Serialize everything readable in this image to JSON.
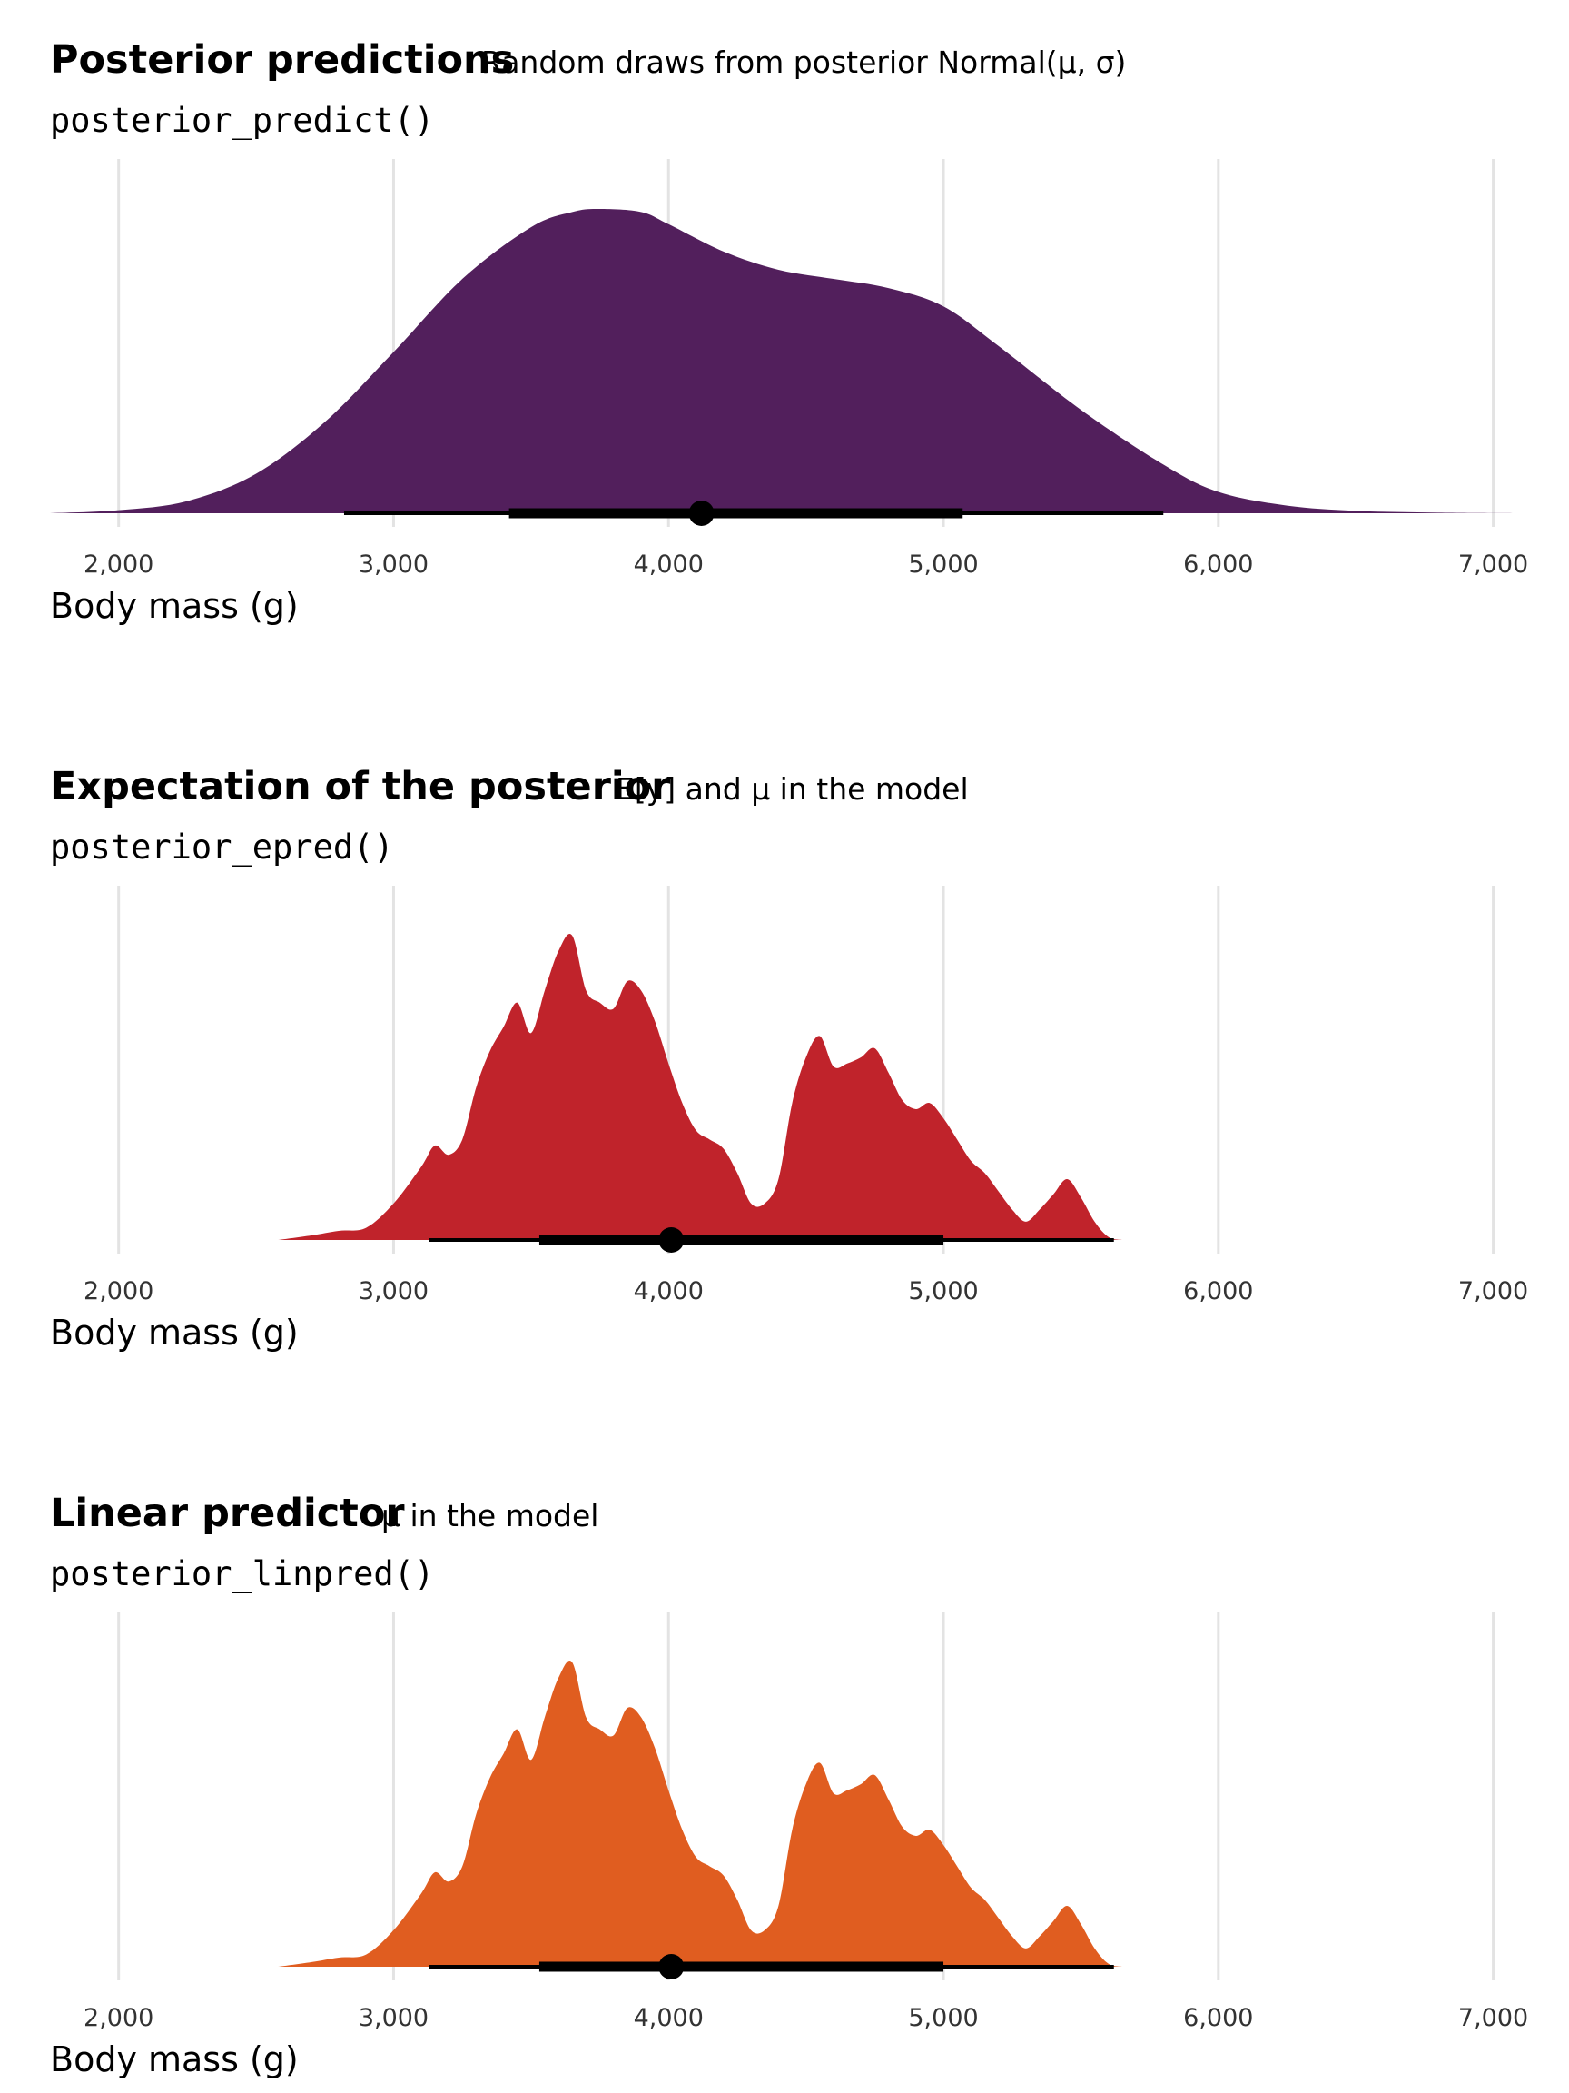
{
  "chart_data": [
    {
      "type": "area",
      "title": "Posterior predictions",
      "subtitle": "Random draws from posterior Normal(μ, σ)",
      "code": "posterior_predict()",
      "xlabel": "Body mass (g)",
      "ylabel": "",
      "xlim": [
        1750,
        7150
      ],
      "ticks": [
        2000,
        3000,
        4000,
        5000,
        6000,
        7000
      ],
      "tick_labels": [
        "2,000",
        "3,000",
        "4,000",
        "5,000",
        "6,000",
        "7,000"
      ],
      "grid": "vertical",
      "color": "#521f5c",
      "density": {
        "x": [
          1750,
          2000,
          2250,
          2500,
          2750,
          3000,
          3250,
          3500,
          3650,
          3750,
          3900,
          4000,
          4200,
          4400,
          4600,
          4800,
          5000,
          5200,
          5500,
          5800,
          6000,
          6250,
          6500,
          6800,
          7150
        ],
        "y": [
          0.0,
          0.01,
          0.04,
          0.13,
          0.3,
          0.53,
          0.77,
          0.94,
          0.99,
          1.0,
          0.99,
          0.95,
          0.86,
          0.8,
          0.77,
          0.74,
          0.68,
          0.55,
          0.34,
          0.16,
          0.07,
          0.025,
          0.008,
          0.002,
          0.0
        ]
      },
      "point_interval": {
        "point": 4120,
        "inner": [
          3420,
          5070
        ],
        "outer": [
          2820,
          5800
        ]
      }
    },
    {
      "type": "area",
      "title": "Expectation of the posterior",
      "subtitle": "E[y] and μ in the model",
      "code": "posterior_epred()",
      "xlabel": "Body mass (g)",
      "ylabel": "",
      "xlim": [
        1750,
        7150
      ],
      "ticks": [
        2000,
        3000,
        4000,
        5000,
        6000,
        7000
      ],
      "tick_labels": [
        "2,000",
        "3,000",
        "4,000",
        "5,000",
        "6,000",
        "7,000"
      ],
      "grid": "vertical",
      "color": "#c0232b",
      "density": {
        "x": [
          2580,
          2700,
          2800,
          2900,
          3000,
          3100,
          3150,
          3200,
          3250,
          3300,
          3350,
          3400,
          3450,
          3500,
          3550,
          3600,
          3650,
          3700,
          3750,
          3800,
          3850,
          3900,
          3950,
          4000,
          4050,
          4100,
          4150,
          4200,
          4250,
          4300,
          4350,
          4400,
          4450,
          4500,
          4550,
          4600,
          4650,
          4700,
          4750,
          4800,
          4850,
          4900,
          4950,
          5000,
          5050,
          5100,
          5150,
          5200,
          5250,
          5300,
          5350,
          5400,
          5450,
          5500,
          5550,
          5600,
          5650,
          5700,
          5750,
          5800,
          5900
        ],
        "y": [
          0.0,
          0.015,
          0.03,
          0.04,
          0.12,
          0.24,
          0.31,
          0.28,
          0.33,
          0.5,
          0.62,
          0.7,
          0.78,
          0.68,
          0.82,
          0.95,
          1.0,
          0.82,
          0.78,
          0.76,
          0.85,
          0.82,
          0.72,
          0.58,
          0.45,
          0.36,
          0.33,
          0.3,
          0.22,
          0.12,
          0.12,
          0.2,
          0.45,
          0.6,
          0.67,
          0.57,
          0.58,
          0.6,
          0.63,
          0.55,
          0.46,
          0.43,
          0.45,
          0.4,
          0.33,
          0.26,
          0.22,
          0.16,
          0.1,
          0.06,
          0.1,
          0.15,
          0.2,
          0.14,
          0.06,
          0.01,
          0.0,
          0.0,
          0.0,
          0.0,
          0.0
        ]
      },
      "point_interval": {
        "point": 4010,
        "inner": [
          3530,
          5000
        ],
        "outer": [
          3130,
          5620
        ]
      }
    },
    {
      "type": "area",
      "title": "Linear predictor",
      "subtitle": "μ in the model",
      "code": "posterior_linpred()",
      "xlabel": "Body mass (g)",
      "ylabel": "",
      "xlim": [
        1750,
        7150
      ],
      "ticks": [
        2000,
        3000,
        4000,
        5000,
        6000,
        7000
      ],
      "tick_labels": [
        "2,000",
        "3,000",
        "4,000",
        "5,000",
        "6,000",
        "7,000"
      ],
      "grid": "vertical",
      "color": "#e05d20",
      "density": {
        "x": [
          2580,
          2700,
          2800,
          2900,
          3000,
          3100,
          3150,
          3200,
          3250,
          3300,
          3350,
          3400,
          3450,
          3500,
          3550,
          3600,
          3650,
          3700,
          3750,
          3800,
          3850,
          3900,
          3950,
          4000,
          4050,
          4100,
          4150,
          4200,
          4250,
          4300,
          4350,
          4400,
          4450,
          4500,
          4550,
          4600,
          4650,
          4700,
          4750,
          4800,
          4850,
          4900,
          4950,
          5000,
          5050,
          5100,
          5150,
          5200,
          5250,
          5300,
          5350,
          5400,
          5450,
          5500,
          5550,
          5600,
          5650,
          5700,
          5750,
          5800,
          5900
        ],
        "y": [
          0.0,
          0.015,
          0.03,
          0.04,
          0.12,
          0.24,
          0.31,
          0.28,
          0.33,
          0.5,
          0.62,
          0.7,
          0.78,
          0.68,
          0.82,
          0.95,
          1.0,
          0.82,
          0.78,
          0.76,
          0.85,
          0.82,
          0.72,
          0.58,
          0.45,
          0.36,
          0.33,
          0.3,
          0.22,
          0.12,
          0.12,
          0.2,
          0.45,
          0.6,
          0.67,
          0.57,
          0.58,
          0.6,
          0.63,
          0.55,
          0.46,
          0.43,
          0.45,
          0.4,
          0.33,
          0.26,
          0.22,
          0.16,
          0.1,
          0.06,
          0.1,
          0.15,
          0.2,
          0.14,
          0.06,
          0.01,
          0.0,
          0.0,
          0.0,
          0.0,
          0.0
        ]
      },
      "point_interval": {
        "point": 4010,
        "inner": [
          3530,
          5000
        ],
        "outer": [
          3130,
          5620
        ]
      }
    }
  ]
}
